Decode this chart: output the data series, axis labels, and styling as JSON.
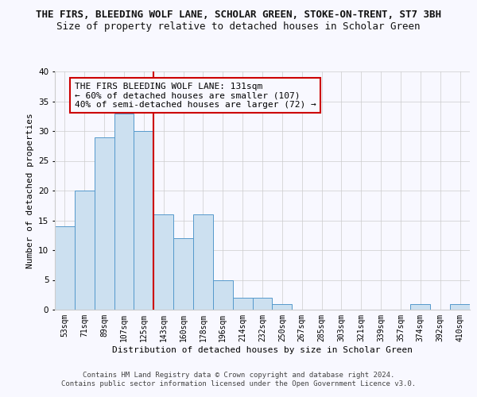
{
  "title": "THE FIRS, BLEEDING WOLF LANE, SCHOLAR GREEN, STOKE-ON-TRENT, ST7 3BH",
  "subtitle": "Size of property relative to detached houses in Scholar Green",
  "xlabel": "Distribution of detached houses by size in Scholar Green",
  "ylabel": "Number of detached properties",
  "footnote1": "Contains HM Land Registry data © Crown copyright and database right 2024.",
  "footnote2": "Contains public sector information licensed under the Open Government Licence v3.0.",
  "annotation_line1": "THE FIRS BLEEDING WOLF LANE: 131sqm",
  "annotation_line2": "← 60% of detached houses are smaller (107)",
  "annotation_line3": "40% of semi-detached houses are larger (72) →",
  "bar_labels": [
    "53sqm",
    "71sqm",
    "89sqm",
    "107sqm",
    "125sqm",
    "143sqm",
    "160sqm",
    "178sqm",
    "196sqm",
    "214sqm",
    "232sqm",
    "250sqm",
    "267sqm",
    "285sqm",
    "303sqm",
    "321sqm",
    "339sqm",
    "357sqm",
    "374sqm",
    "392sqm",
    "410sqm"
  ],
  "bar_values": [
    14,
    20,
    29,
    33,
    30,
    16,
    12,
    16,
    5,
    2,
    2,
    1,
    0,
    0,
    0,
    0,
    0,
    0,
    1,
    0,
    1
  ],
  "bar_color": "#cce0f0",
  "bar_edgecolor": "#5599cc",
  "property_line_x": 4.5,
  "property_line_color": "#cc0000",
  "ylim": [
    0,
    40
  ],
  "yticks": [
    0,
    5,
    10,
    15,
    20,
    25,
    30,
    35,
    40
  ],
  "grid_color": "#cccccc",
  "background_color": "#f8f8ff",
  "title_fontsize": 9,
  "subtitle_fontsize": 9,
  "axis_label_fontsize": 8,
  "tick_fontsize": 7,
  "annotation_fontsize": 8,
  "footnote_fontsize": 6.5
}
